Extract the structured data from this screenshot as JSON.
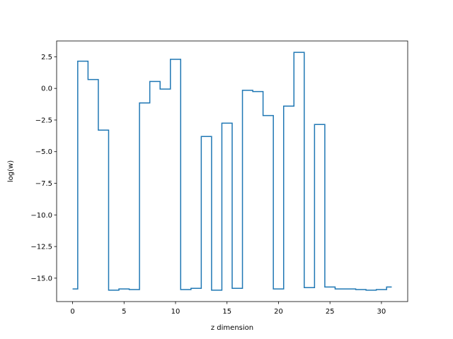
{
  "chart_data": {
    "type": "line",
    "drawstyle": "steps-mid",
    "title": "",
    "xlabel": "z dimension",
    "ylabel": "log(w)",
    "xlim": [
      -1.55,
      32.55
    ],
    "ylim": [
      -16.85,
      3.75
    ],
    "xticks": [
      0,
      5,
      10,
      15,
      20,
      25,
      30
    ],
    "yticks": [
      2.5,
      0.0,
      -2.5,
      -5.0,
      -7.5,
      -10.0,
      -12.5,
      -15.0
    ],
    "ytick_labels": [
      "2.5",
      "0.0",
      "−2.5",
      "−5.0",
      "−7.5",
      "−10.0",
      "−12.5",
      "−15.0"
    ],
    "grid": false,
    "series": [
      {
        "color": "#1f77b4",
        "x": [
          0,
          1,
          2,
          3,
          4,
          5,
          6,
          7,
          8,
          9,
          10,
          11,
          12,
          13,
          14,
          15,
          16,
          17,
          18,
          19,
          20,
          21,
          22,
          23,
          24,
          25,
          26,
          27,
          28,
          29,
          30,
          31
        ],
        "y": [
          -15.85,
          2.15,
          0.7,
          -3.3,
          -15.95,
          -15.85,
          -15.9,
          -1.15,
          0.55,
          -0.05,
          2.3,
          -15.9,
          -15.8,
          -3.8,
          -15.95,
          -2.75,
          -15.8,
          -0.15,
          -0.25,
          -2.15,
          -15.85,
          -1.4,
          2.85,
          -15.75,
          -2.85,
          -15.7,
          -15.85,
          -15.85,
          -15.9,
          -15.95,
          -15.9,
          -15.7
        ]
      }
    ]
  }
}
